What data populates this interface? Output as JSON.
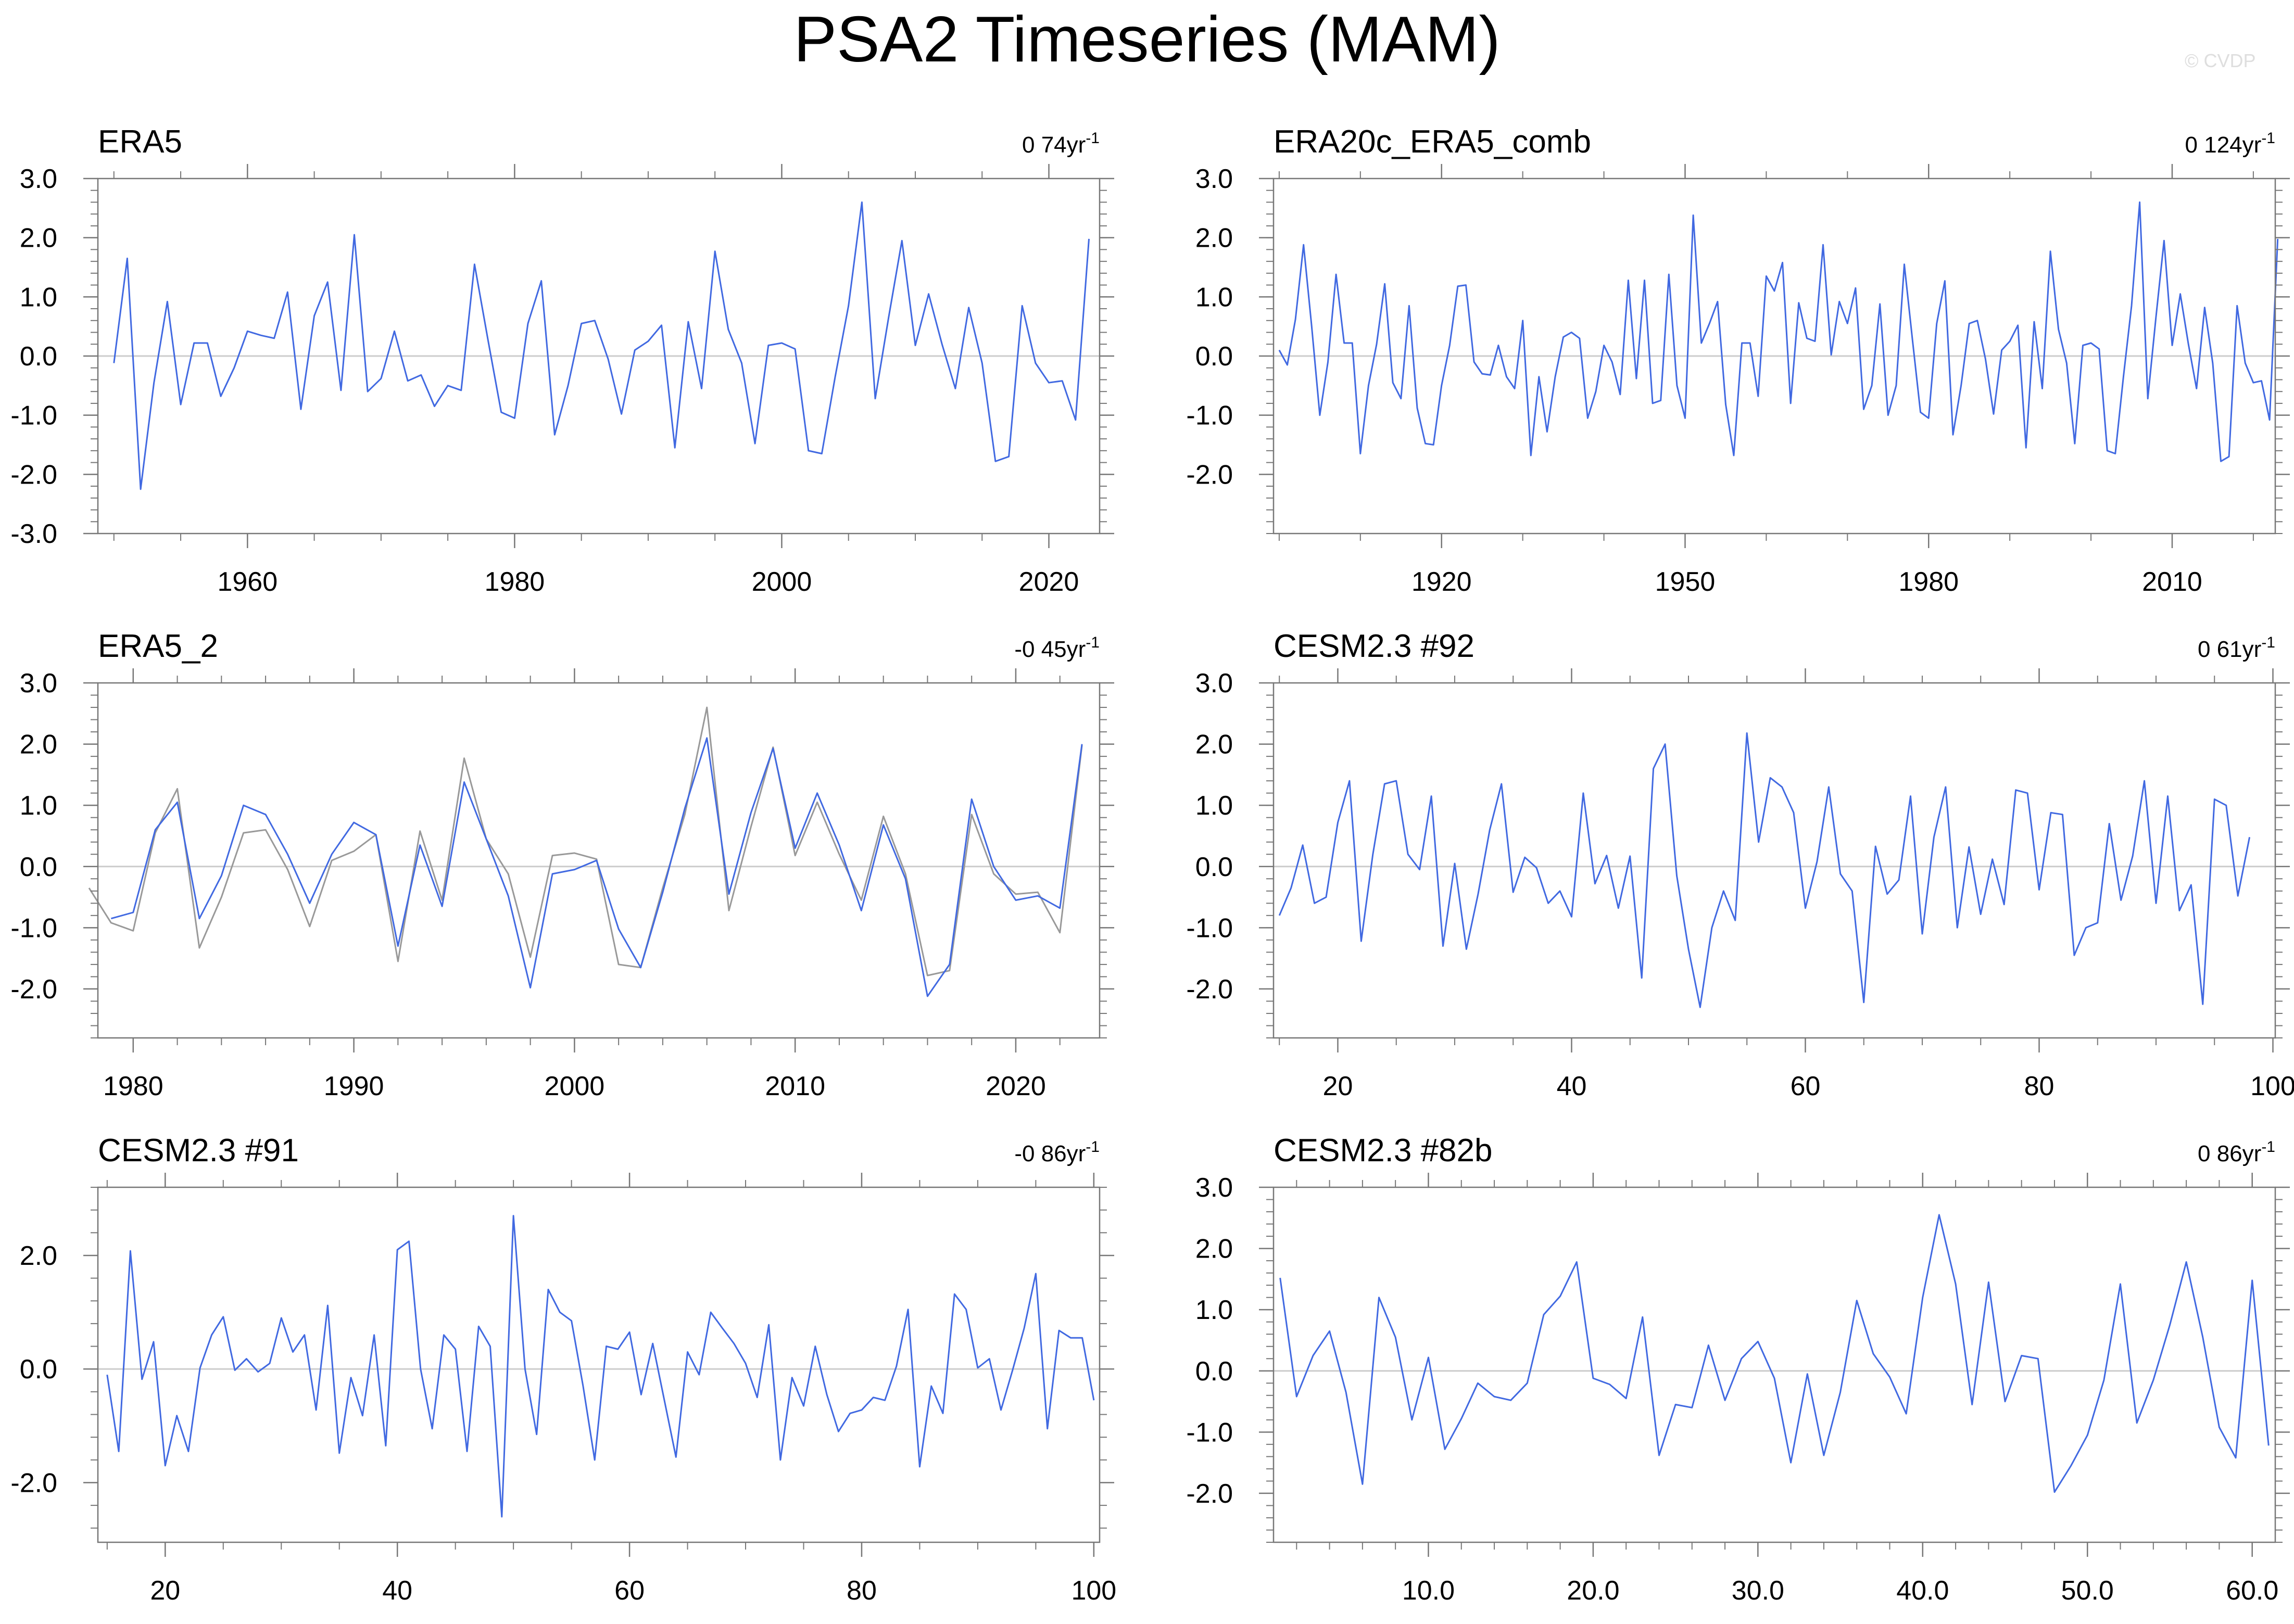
{
  "title": "PSA2 Timeseries (MAM)",
  "watermark": "© CVDP",
  "colors": {
    "primary": "#4169e1",
    "secondary": "#999999",
    "zero_line": "#cccccc",
    "axis": "#777777"
  },
  "chart_data": [
    {
      "type": "line",
      "title": "ERA5",
      "trend_value": "0 74yr",
      "trend_exp": "-1",
      "xlim": [
        1948.8,
        2023.8
      ],
      "ylim": [
        -3,
        3
      ],
      "xticks": [
        1960,
        1980,
        2000,
        2020
      ],
      "xtick_labels": [
        "1960",
        "1980",
        "2000",
        "2020"
      ],
      "xminor_step": 5,
      "yticks": [
        -3,
        -2,
        -1,
        0,
        1,
        2,
        3
      ],
      "ytick_labels": [
        "-3.0",
        "-2.0",
        "-1.0",
        "0.0",
        "1.0",
        "2.0",
        "3.0"
      ],
      "yminor_step": 0.2,
      "series": [
        {
          "x_start": 1950,
          "y": [
            -0.12,
            1.65,
            -2.25,
            -0.45,
            0.92,
            -0.82,
            0.22,
            0.22,
            -0.68,
            -0.2,
            0.42,
            0.35,
            0.3,
            1.08,
            -0.9,
            0.68,
            1.25,
            -0.58,
            2.05,
            -0.6,
            -0.38,
            0.42,
            -0.42,
            -0.32,
            -0.85,
            -0.5,
            -0.58,
            1.55,
            0.28,
            -0.95,
            -1.05,
            0.55,
            1.27,
            -1.33,
            -0.5,
            0.55,
            0.6,
            -0.05,
            -0.98,
            0.1,
            0.25,
            0.52,
            -1.55,
            0.58,
            -0.55,
            1.77,
            0.45,
            -0.12,
            -1.48,
            0.18,
            0.22,
            0.12,
            -1.6,
            -1.65,
            -0.35,
            0.85,
            2.6,
            -0.72,
            0.65,
            1.95,
            0.18,
            1.05,
            0.2,
            -0.55,
            0.82,
            -0.12,
            -1.78,
            -1.7,
            0.85,
            -0.12,
            -0.45,
            -0.42,
            -1.08,
            1.98
          ]
        }
      ]
    },
    {
      "type": "line",
      "title": "ERA20c_ERA5_comb",
      "trend_value": "0 124yr",
      "trend_exp": "-1",
      "xlim": [
        1899.3,
        2022.7
      ],
      "ylim": [
        -3,
        3
      ],
      "xticks": [
        1920,
        1950,
        1980,
        2010
      ],
      "xtick_labels": [
        "1920",
        "1950",
        "1980",
        "2010"
      ],
      "xminor_step": 10,
      "yticks": [
        -2,
        -1,
        0,
        1,
        2,
        3
      ],
      "ytick_labels": [
        "-2.0",
        "-1.0",
        "0.0",
        "1.0",
        "2.0",
        "3.0"
      ],
      "yminor_step": 0.2,
      "series": [
        {
          "x_start": 1900,
          "y": [
            0.1,
            -0.15,
            0.62,
            1.88,
            0.5,
            -1.0,
            -0.1,
            1.38,
            0.22,
            0.22,
            -1.65,
            -0.5,
            0.2,
            1.22,
            -0.45,
            -0.72,
            0.85,
            -0.88,
            -1.48,
            -1.5,
            -0.5,
            0.18,
            1.18,
            1.2,
            -0.1,
            -0.3,
            -0.32,
            0.18,
            -0.35,
            -0.55,
            0.6,
            -1.68,
            -0.35,
            -1.28,
            -0.35,
            0.32,
            0.4,
            0.3,
            -1.05,
            -0.6,
            0.18,
            -0.1,
            -0.65,
            1.28,
            -0.38,
            1.28,
            -0.8,
            -0.75,
            1.38,
            -0.5,
            -1.05,
            2.38,
            0.22,
            0.55,
            0.92,
            -0.82,
            -1.68,
            0.22,
            0.22,
            -0.68,
            1.35,
            1.1,
            1.58,
            -0.8,
            0.9,
            0.3,
            0.25,
            1.88,
            0.02,
            0.92,
            0.55,
            1.15,
            -0.9,
            -0.5,
            0.88,
            -1.0,
            -0.5,
            1.55,
            0.28,
            -0.95,
            -1.05,
            0.55,
            1.27,
            -1.33,
            -0.5,
            0.55,
            0.6,
            -0.05,
            -0.98,
            0.1,
            0.25,
            0.52,
            -1.55,
            0.58,
            -0.55,
            1.77,
            0.45,
            -0.12,
            -1.48,
            0.18,
            0.22,
            0.12,
            -1.6,
            -1.65,
            -0.35,
            0.85,
            2.6,
            -0.72,
            0.65,
            1.95,
            0.18,
            1.05,
            0.2,
            -0.55,
            0.82,
            -0.12,
            -1.78,
            -1.7,
            0.85,
            -0.12,
            -0.45,
            -0.42,
            -1.08,
            1.98
          ]
        }
      ]
    },
    {
      "type": "line",
      "title": "ERA5_2",
      "trend_value": "-0 45yr",
      "trend_exp": "-1",
      "xlim": [
        1978.4,
        2023.8
      ],
      "ylim": [
        -2.8,
        3
      ],
      "xticks": [
        1980,
        1990,
        2000,
        2010,
        2020
      ],
      "xtick_labels": [
        "1980",
        "1990",
        "2000",
        "2010",
        "2020"
      ],
      "xminor_step": 2,
      "yticks": [
        -2,
        -1,
        0,
        1,
        2,
        3
      ],
      "ytick_labels": [
        "-2.0",
        "-1.0",
        "0.0",
        "1.0",
        "2.0",
        "3.0"
      ],
      "yminor_step": 0.2,
      "series": [
        {
          "x_start": 1979,
          "y": [
            -0.85,
            -0.75,
            0.6,
            1.05,
            -0.85,
            -0.15,
            1.0,
            0.85,
            0.2,
            -0.6,
            0.2,
            0.72,
            0.52,
            -1.3,
            0.35,
            -0.65,
            1.38,
            0.45,
            -0.48,
            -1.98,
            -0.12,
            -0.05,
            0.1,
            -1.02,
            -1.65,
            -0.42,
            0.95,
            2.1,
            -0.45,
            0.88,
            1.93,
            0.3,
            1.2,
            0.35,
            -0.72,
            0.68,
            -0.2,
            -2.12,
            -1.6,
            1.1,
            0.0,
            -0.55,
            -0.48,
            -0.68,
            2.0
          ]
        },
        {
          "x_start": 1978,
          "y": [
            -0.35,
            -0.92,
            -1.05,
            0.55,
            1.27,
            -1.33,
            -0.5,
            0.55,
            0.6,
            -0.05,
            -0.98,
            0.1,
            0.25,
            0.52,
            -1.55,
            0.58,
            -0.55,
            1.77,
            0.45,
            -0.12,
            -1.48,
            0.18,
            0.22,
            0.12,
            -1.6,
            -1.65,
            -0.35,
            0.85,
            2.6,
            -0.72,
            0.65,
            1.95,
            0.18,
            1.05,
            0.2,
            -0.55,
            0.82,
            -0.12,
            -1.78,
            -1.7,
            0.85,
            -0.12,
            -0.45,
            -0.42,
            -1.08,
            1.98
          ]
        }
      ]
    },
    {
      "type": "line",
      "title": "CESM2.3 #92",
      "trend_value": "0 61yr",
      "trend_exp": "-1",
      "xlim": [
        14.5,
        100.2
      ],
      "ylim": [
        -2.8,
        3
      ],
      "xticks": [
        20,
        40,
        60,
        80,
        100
      ],
      "xtick_labels": [
        "20",
        "40",
        "60",
        "80",
        "100"
      ],
      "xminor_step": 5,
      "yticks": [
        -2,
        -1,
        0,
        1,
        2,
        3
      ],
      "ytick_labels": [
        "-2.0",
        "-1.0",
        "0.0",
        "1.0",
        "2.0",
        "3.0"
      ],
      "yminor_step": 0.2,
      "series": [
        {
          "x_start": 15,
          "y": [
            -0.8,
            -0.35,
            0.35,
            -0.6,
            -0.5,
            0.72,
            1.4,
            -1.22,
            0.2,
            1.35,
            1.4,
            0.2,
            -0.05,
            1.15,
            -1.3,
            0.05,
            -1.35,
            -0.45,
            0.6,
            1.35,
            -0.42,
            0.15,
            -0.02,
            -0.6,
            -0.4,
            -0.82,
            1.2,
            -0.28,
            0.18,
            -0.68,
            0.17,
            -1.82,
            1.6,
            2.0,
            -0.15,
            -1.35,
            -2.3,
            -1.0,
            -0.4,
            -0.88,
            2.18,
            0.4,
            1.45,
            1.3,
            0.88,
            -0.68,
            0.08,
            1.3,
            -0.12,
            -0.4,
            -2.22,
            0.33,
            -0.45,
            -0.22,
            1.15,
            -1.1,
            0.48,
            1.3,
            -1.0,
            0.32,
            -0.78,
            0.12,
            -0.62,
            1.25,
            1.2,
            -0.38,
            0.88,
            0.85,
            -1.45,
            -1.0,
            -0.92,
            0.7,
            -0.55,
            0.17,
            1.4,
            -0.6,
            1.15,
            -0.72,
            -0.3,
            -2.25,
            1.1,
            1.0,
            -0.48,
            0.48
          ]
        }
      ]
    },
    {
      "type": "line",
      "title": "CESM2.3 #91",
      "trend_value": "-0 86yr",
      "trend_exp": "-1",
      "xlim": [
        14.2,
        100.5
      ],
      "ylim": [
        -3.05,
        3.2
      ],
      "xticks": [
        20,
        40,
        60,
        80,
        100
      ],
      "xtick_labels": [
        "20",
        "40",
        "60",
        "80",
        "100"
      ],
      "xminor_step": 5,
      "yticks": [
        -2,
        0,
        2
      ],
      "ytick_labels": [
        "-2.0",
        "0.0",
        "2.0"
      ],
      "yminor_step": 0.4,
      "series": [
        {
          "x_start": 15,
          "y": [
            -0.1,
            -1.45,
            2.08,
            -0.18,
            0.48,
            -1.7,
            -0.82,
            -1.45,
            0.02,
            0.6,
            0.92,
            -0.02,
            0.18,
            -0.05,
            0.1,
            0.9,
            0.3,
            0.6,
            -0.72,
            1.12,
            -1.48,
            -0.15,
            -0.82,
            0.6,
            -1.35,
            2.1,
            2.25,
            0.0,
            -1.05,
            0.6,
            0.35,
            -1.45,
            0.75,
            0.4,
            -2.6,
            2.7,
            0.0,
            -1.15,
            1.4,
            1.0,
            0.85,
            -0.3,
            -1.6,
            0.4,
            0.35,
            0.65,
            -0.45,
            0.45,
            -0.55,
            -1.55,
            0.3,
            -0.1,
            1.0,
            0.72,
            0.45,
            0.1,
            -0.5,
            0.78,
            -1.6,
            -0.15,
            -0.65,
            0.4,
            -0.45,
            -1.1,
            -0.78,
            -0.72,
            -0.5,
            -0.55,
            0.05,
            1.05,
            -1.72,
            -0.3,
            -0.78,
            1.32,
            1.05,
            0.02,
            0.18,
            -0.72,
            -0.02,
            0.72,
            1.68,
            -1.05,
            0.68,
            0.55,
            0.55,
            -0.55
          ]
        }
      ]
    },
    {
      "type": "line",
      "title": "CESM2.3 #82b",
      "trend_value": "0 86yr",
      "trend_exp": "-1",
      "xlim": [
        0.6,
        61.4
      ],
      "ylim": [
        -2.8,
        3
      ],
      "xticks": [
        10,
        20,
        30,
        40,
        50,
        60
      ],
      "xtick_labels": [
        "10.0",
        "20.0",
        "30.0",
        "40.0",
        "50.0",
        "60.0"
      ],
      "xminor_step": 2,
      "yticks": [
        -2,
        -1,
        0,
        1,
        2,
        3
      ],
      "ytick_labels": [
        "-2.0",
        "-1.0",
        "0.0",
        "1.0",
        "2.0",
        "3.0"
      ],
      "yminor_step": 0.2,
      "series": [
        {
          "x_start": 1,
          "y": [
            1.52,
            -0.42,
            0.25,
            0.65,
            -0.35,
            -1.85,
            1.2,
            0.55,
            -0.8,
            0.22,
            -1.28,
            -0.78,
            -0.2,
            -0.42,
            -0.48,
            -0.2,
            0.92,
            1.22,
            1.78,
            -0.12,
            -0.22,
            -0.45,
            0.88,
            -1.38,
            -0.55,
            -0.6,
            0.42,
            -0.48,
            0.2,
            0.48,
            -0.12,
            -1.5,
            -0.05,
            -1.38,
            -0.35,
            1.15,
            0.28,
            -0.1,
            -0.7,
            1.2,
            2.55,
            1.42,
            -0.55,
            1.45,
            -0.5,
            0.25,
            0.2,
            -1.98,
            -1.55,
            -1.05,
            -0.15,
            1.42,
            -0.85,
            -0.15,
            0.75,
            1.78,
            0.55,
            -0.92,
            -1.42,
            1.48,
            -1.22
          ]
        }
      ]
    }
  ]
}
